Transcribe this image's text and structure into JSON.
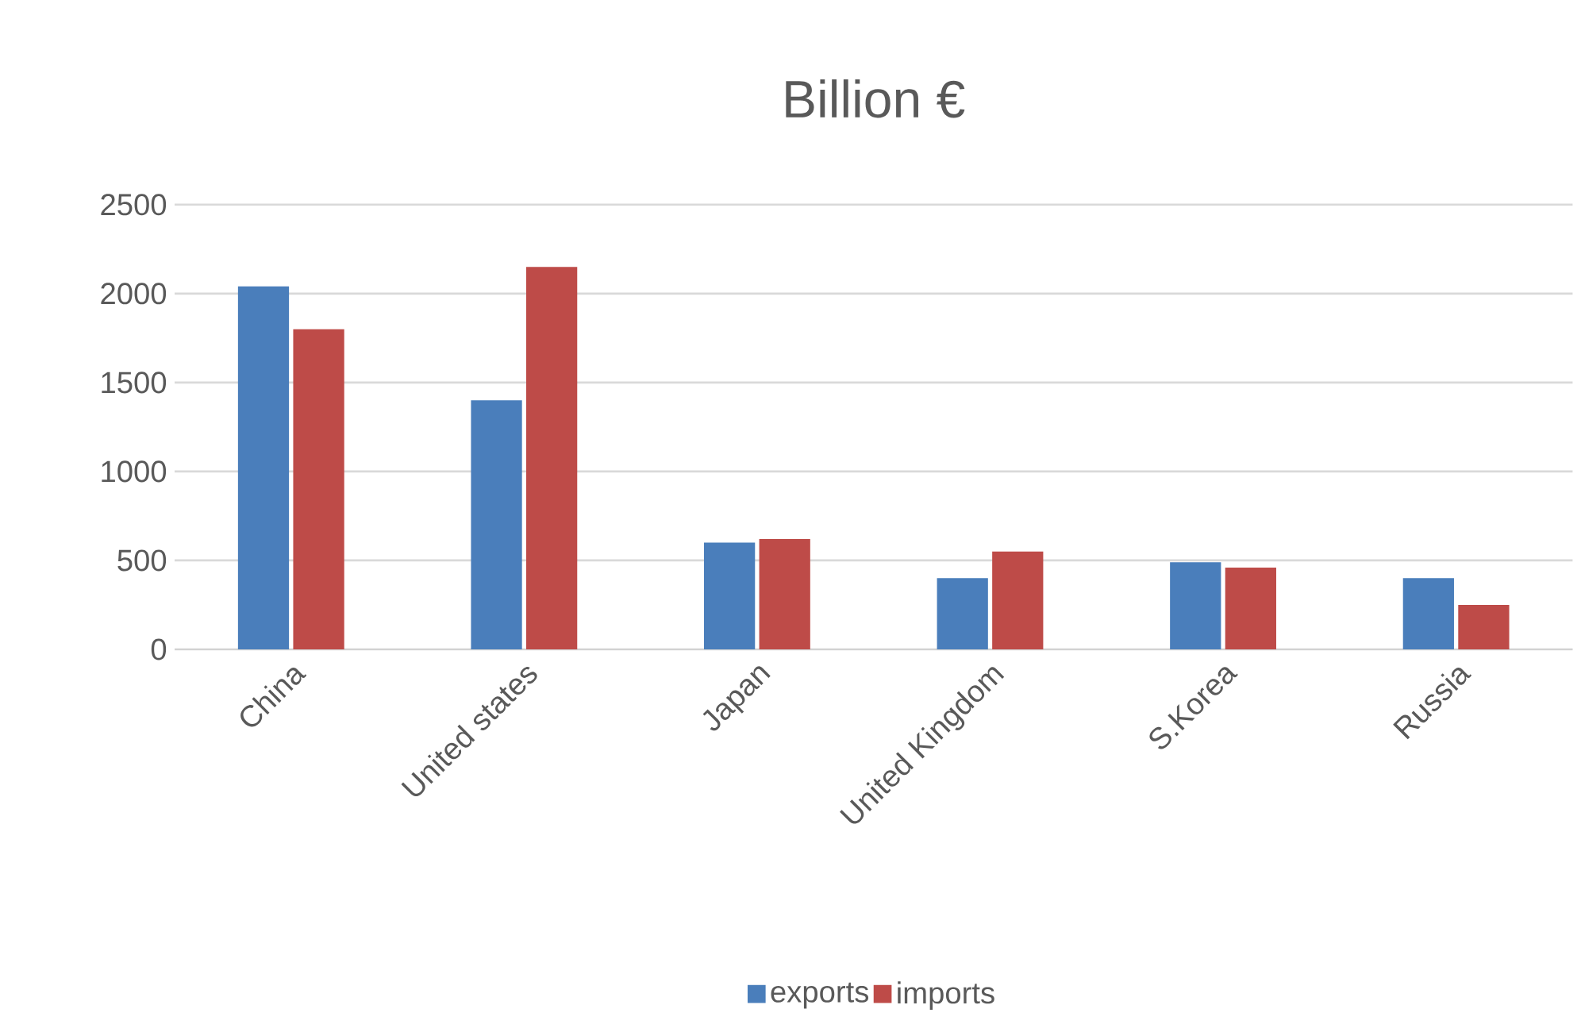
{
  "chart_data": {
    "type": "bar",
    "title": "Billion €",
    "categories": [
      "China",
      "United states",
      "Japan",
      "United Kingdom",
      "S.Korea",
      "Russia"
    ],
    "series": [
      {
        "name": "exports",
        "color": "#4a7ebb",
        "values": [
          2040,
          1400,
          600,
          400,
          490,
          400
        ]
      },
      {
        "name": "imports",
        "color": "#be4b48",
        "values": [
          1800,
          2150,
          620,
          550,
          460,
          250
        ]
      }
    ],
    "ylim": [
      0,
      2500
    ],
    "yticks": [
      0,
      500,
      1000,
      1500,
      2000,
      2500
    ],
    "grid": "y",
    "legend": "bottom"
  }
}
